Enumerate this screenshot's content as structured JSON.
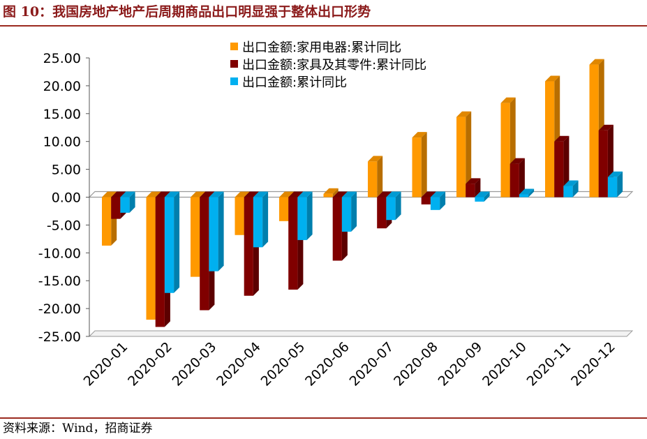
{
  "header": {
    "figure_label": "图 10：",
    "title": "我国房地产地产后周期商品出口明显强于整体出口形势"
  },
  "footer": {
    "source": "资料来源：Wind，招商证券"
  },
  "chart_data": {
    "type": "bar",
    "categories": [
      "2020-01",
      "2020-02",
      "2020-03",
      "2020-04",
      "2020-05",
      "2020-06",
      "2020-07",
      "2020-08",
      "2020-09",
      "2020-10",
      "2020-11",
      "2020-12"
    ],
    "series": [
      {
        "name": "出口金额:家用电器:累计同比",
        "color": "#ff9900",
        "values": [
          -8.7,
          -22.0,
          -14.3,
          -6.8,
          -4.3,
          0.6,
          6.4,
          10.7,
          14.4,
          16.9,
          20.8,
          23.8
        ]
      },
      {
        "name": "出口金额:家具及其零件:累计同比",
        "color": "#800000",
        "values": [
          -3.9,
          -23.3,
          -20.3,
          -17.7,
          -16.6,
          -11.4,
          -5.6,
          -1.3,
          2.4,
          6.0,
          10.0,
          12.0
        ]
      },
      {
        "name": "出口金额:累计同比",
        "color": "#00b0f0",
        "values": [
          -2.8,
          -17.2,
          -13.3,
          -9.0,
          -7.7,
          -6.2,
          -4.1,
          -2.3,
          -0.8,
          0.5,
          2.0,
          3.6
        ]
      }
    ],
    "ylim": [
      -25,
      25
    ],
    "yticks": [
      "25.00",
      "20.00",
      "15.00",
      "10.00",
      "5.00",
      "0.00",
      "-5.00",
      "-10.00",
      "-15.00",
      "-20.00",
      "-25.00"
    ],
    "legend_position": "top-center",
    "grid": false,
    "style": "3d-bars"
  }
}
